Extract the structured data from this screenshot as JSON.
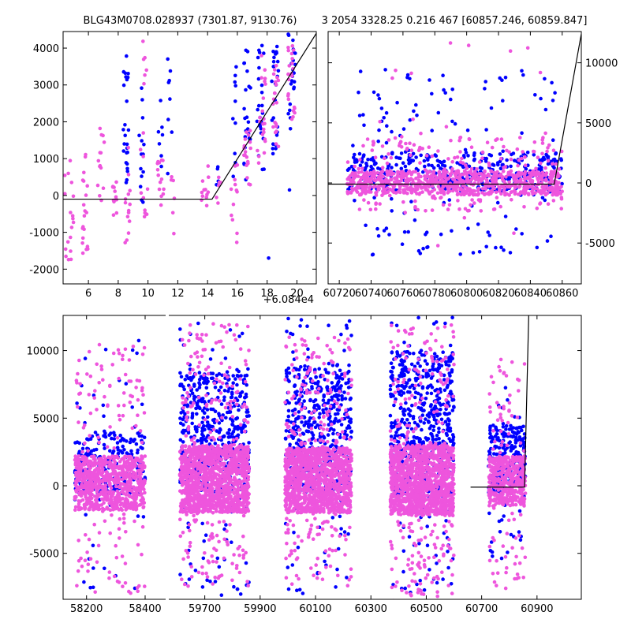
{
  "colors": {
    "series_a": "#0000ff",
    "series_b": "#ee55dd",
    "model": "#000000"
  },
  "chart_data": [
    {
      "id": "zoom",
      "type": "scatter",
      "title": "BLG43M0708.028937 (7301.87, 9130.76)",
      "offset_label": "+6.084e4",
      "xlim": [
        4.3,
        21.3
      ],
      "ylim": [
        -2400,
        4450
      ],
      "xticks": [
        6,
        8,
        10,
        12,
        14,
        16,
        18,
        20
      ],
      "yticks": [
        -2000,
        -1000,
        0,
        1000,
        2000,
        3000,
        4000
      ],
      "model_line": {
        "x": [
          4.3,
          14.3,
          21.3
        ],
        "y": [
          -100,
          -100,
          4400
        ]
      },
      "series": [
        {
          "name": "blue",
          "color": "#0000ff",
          "clusters": [
            {
              "x": [
                8.3,
                8.7
              ],
              "y": [
                0,
                3800
              ],
              "n": 25
            },
            {
              "x": [
                9.4,
                9.8
              ],
              "y": [
                -200,
                3100
              ],
              "n": 14
            },
            {
              "x": [
                10.7,
                11.0
              ],
              "y": [
                0,
                2700
              ],
              "n": 7
            },
            {
              "x": [
                11.3,
                11.6
              ],
              "y": [
                -500,
                4000
              ],
              "n": 8
            },
            {
              "x": [
                14.6,
                14.9
              ],
              "y": [
                0,
                900
              ],
              "n": 4
            },
            {
              "x": [
                15.6,
                16.0
              ],
              "y": [
                500,
                3500
              ],
              "n": 10
            },
            {
              "x": [
                16.4,
                16.9
              ],
              "y": [
                400,
                4000
              ],
              "n": 22
            },
            {
              "x": [
                17.3,
                17.8
              ],
              "y": [
                600,
                4100
              ],
              "n": 24
            },
            {
              "x": [
                18.3,
                18.8
              ],
              "y": [
                1000,
                4200
              ],
              "n": 26
            },
            {
              "x": [
                19.4,
                19.9
              ],
              "y": [
                1800,
                4400
              ],
              "n": 22
            }
          ],
          "extra": [
            [
              18.1,
              -1700
            ],
            [
              19.5,
              150
            ]
          ]
        },
        {
          "name": "pink",
          "color": "#ee55dd",
          "clusters": [
            {
              "x": [
                4.4,
                5.0
              ],
              "y": [
                -1900,
                1000
              ],
              "n": 18
            },
            {
              "x": [
                5.6,
                6.0
              ],
              "y": [
                -1700,
                1300
              ],
              "n": 20
            },
            {
              "x": [
                6.6,
                7.1
              ],
              "y": [
                -200,
                1900
              ],
              "n": 14
            },
            {
              "x": [
                7.6,
                7.9
              ],
              "y": [
                -600,
                400
              ],
              "n": 12
            },
            {
              "x": [
                8.4,
                8.8
              ],
              "y": [
                -1300,
                1500
              ],
              "n": 14
            },
            {
              "x": [
                9.5,
                10.0
              ],
              "y": [
                -600,
                4300
              ],
              "n": 16
            },
            {
              "x": [
                10.6,
                11.1
              ],
              "y": [
                -300,
                1200
              ],
              "n": 14
            },
            {
              "x": [
                11.5,
                11.8
              ],
              "y": [
                -1300,
                700
              ],
              "n": 6
            },
            {
              "x": [
                13.5,
                14.1
              ],
              "y": [
                -300,
                800
              ],
              "n": 12
            },
            {
              "x": [
                14.6,
                14.9
              ],
              "y": [
                -300,
                500
              ],
              "n": 6
            },
            {
              "x": [
                15.5,
                16.0
              ],
              "y": [
                -1300,
                900
              ],
              "n": 12
            },
            {
              "x": [
                16.4,
                16.9
              ],
              "y": [
                200,
                1900
              ],
              "n": 18
            },
            {
              "x": [
                17.3,
                17.9
              ],
              "y": [
                800,
                3900
              ],
              "n": 22
            },
            {
              "x": [
                18.4,
                18.8
              ],
              "y": [
                1300,
                3800
              ],
              "n": 20
            },
            {
              "x": [
                19.4,
                19.9
              ],
              "y": [
                2000,
                4200
              ],
              "n": 22
            }
          ],
          "extra": []
        }
      ]
    },
    {
      "id": "recent",
      "type": "scatter",
      "title": "3 2054 3328.25 0.216 467 [60857.246, 60859.847]",
      "xlim": [
        60713,
        60872
      ],
      "ylim": [
        -8400,
        12600
      ],
      "xticks": [
        60720,
        60740,
        60760,
        60780,
        60800,
        60820,
        60840,
        60860
      ],
      "yticks": [
        -5000,
        0,
        5000,
        10000
      ],
      "model_line": {
        "x": [
          60713,
          60855,
          60872
        ],
        "y": [
          -100,
          -100,
          12400
        ]
      },
      "series": [
        {
          "name": "blue",
          "color": "#0000ff",
          "clusters": [
            {
              "x": [
                60725,
                60860
              ],
              "y": [
                -600,
                2600
              ],
              "n": 360
            },
            {
              "x": [
                60727,
                60858
              ],
              "y": [
                -6000,
                9500
              ],
              "n": 150
            }
          ],
          "extra": []
        },
        {
          "name": "pink",
          "color": "#ee55dd",
          "clusters": [
            {
              "x": [
                60725,
                60860
              ],
              "y": [
                -1000,
                1000
              ],
              "n": 700
            },
            {
              "x": [
                60725,
                60860
              ],
              "y": [
                -2500,
                3800
              ],
              "n": 220
            },
            {
              "x": [
                60740,
                60858
              ],
              "y": [
                -8000,
                12000
              ],
              "n": 25
            }
          ],
          "extra": []
        }
      ]
    },
    {
      "id": "full",
      "type": "scatter",
      "broken_axis": true,
      "ylim": [
        -8400,
        12600
      ],
      "yticks": [
        -5000,
        0,
        5000,
        10000
      ],
      "segments": [
        {
          "xlim": [
            58120,
            58470
          ],
          "xticks": [
            58200,
            58400
          ]
        },
        {
          "xlim": [
            59570,
            61060
          ],
          "xticks": [
            59700,
            59900,
            60100,
            60300,
            60500,
            60700,
            60900
          ]
        }
      ],
      "model_line": {
        "x": [
          60660,
          60855,
          60870
        ],
        "y": [
          -100,
          -100,
          12600
        ]
      },
      "series": [
        {
          "name": "blue",
          "color": "#0000ff",
          "seasons": [
            {
              "x": [
                58160,
                58400
              ],
              "core": [
                -600,
                4000
              ],
              "wide": [
                -8000,
                11000
              ],
              "n": 260
            },
            {
              "x": [
                59610,
                59860
              ],
              "core": [
                -500,
                8500
              ],
              "wide": [
                -8200,
                12500
              ],
              "n": 520
            },
            {
              "x": [
                59990,
                60230
              ],
              "core": [
                -500,
                9000
              ],
              "wide": [
                -8000,
                12500
              ],
              "n": 560
            },
            {
              "x": [
                60370,
                60600
              ],
              "core": [
                -800,
                10000
              ],
              "wide": [
                -8200,
                12500
              ],
              "n": 620
            },
            {
              "x": [
                60725,
                60858
              ],
              "core": [
                -500,
                4500
              ],
              "wide": [
                -5500,
                10000
              ],
              "n": 260
            }
          ]
        },
        {
          "name": "pink",
          "color": "#ee55dd",
          "seasons": [
            {
              "x": [
                58160,
                58400
              ],
              "core": [
                -1800,
                2200
              ],
              "wide": [
                -8000,
                10500
              ],
              "n": 900
            },
            {
              "x": [
                59610,
                59860
              ],
              "core": [
                -2000,
                3000
              ],
              "wide": [
                -7500,
                12000
              ],
              "n": 1400
            },
            {
              "x": [
                59990,
                60230
              ],
              "core": [
                -2000,
                2800
              ],
              "wide": [
                -7500,
                11000
              ],
              "n": 1400
            },
            {
              "x": [
                60370,
                60600
              ],
              "core": [
                -2200,
                3000
              ],
              "wide": [
                -8500,
                12000
              ],
              "n": 1400
            },
            {
              "x": [
                60725,
                60858
              ],
              "core": [
                -1500,
                2200
              ],
              "wide": [
                -8000,
                9500
              ],
              "n": 500
            }
          ]
        }
      ]
    }
  ]
}
